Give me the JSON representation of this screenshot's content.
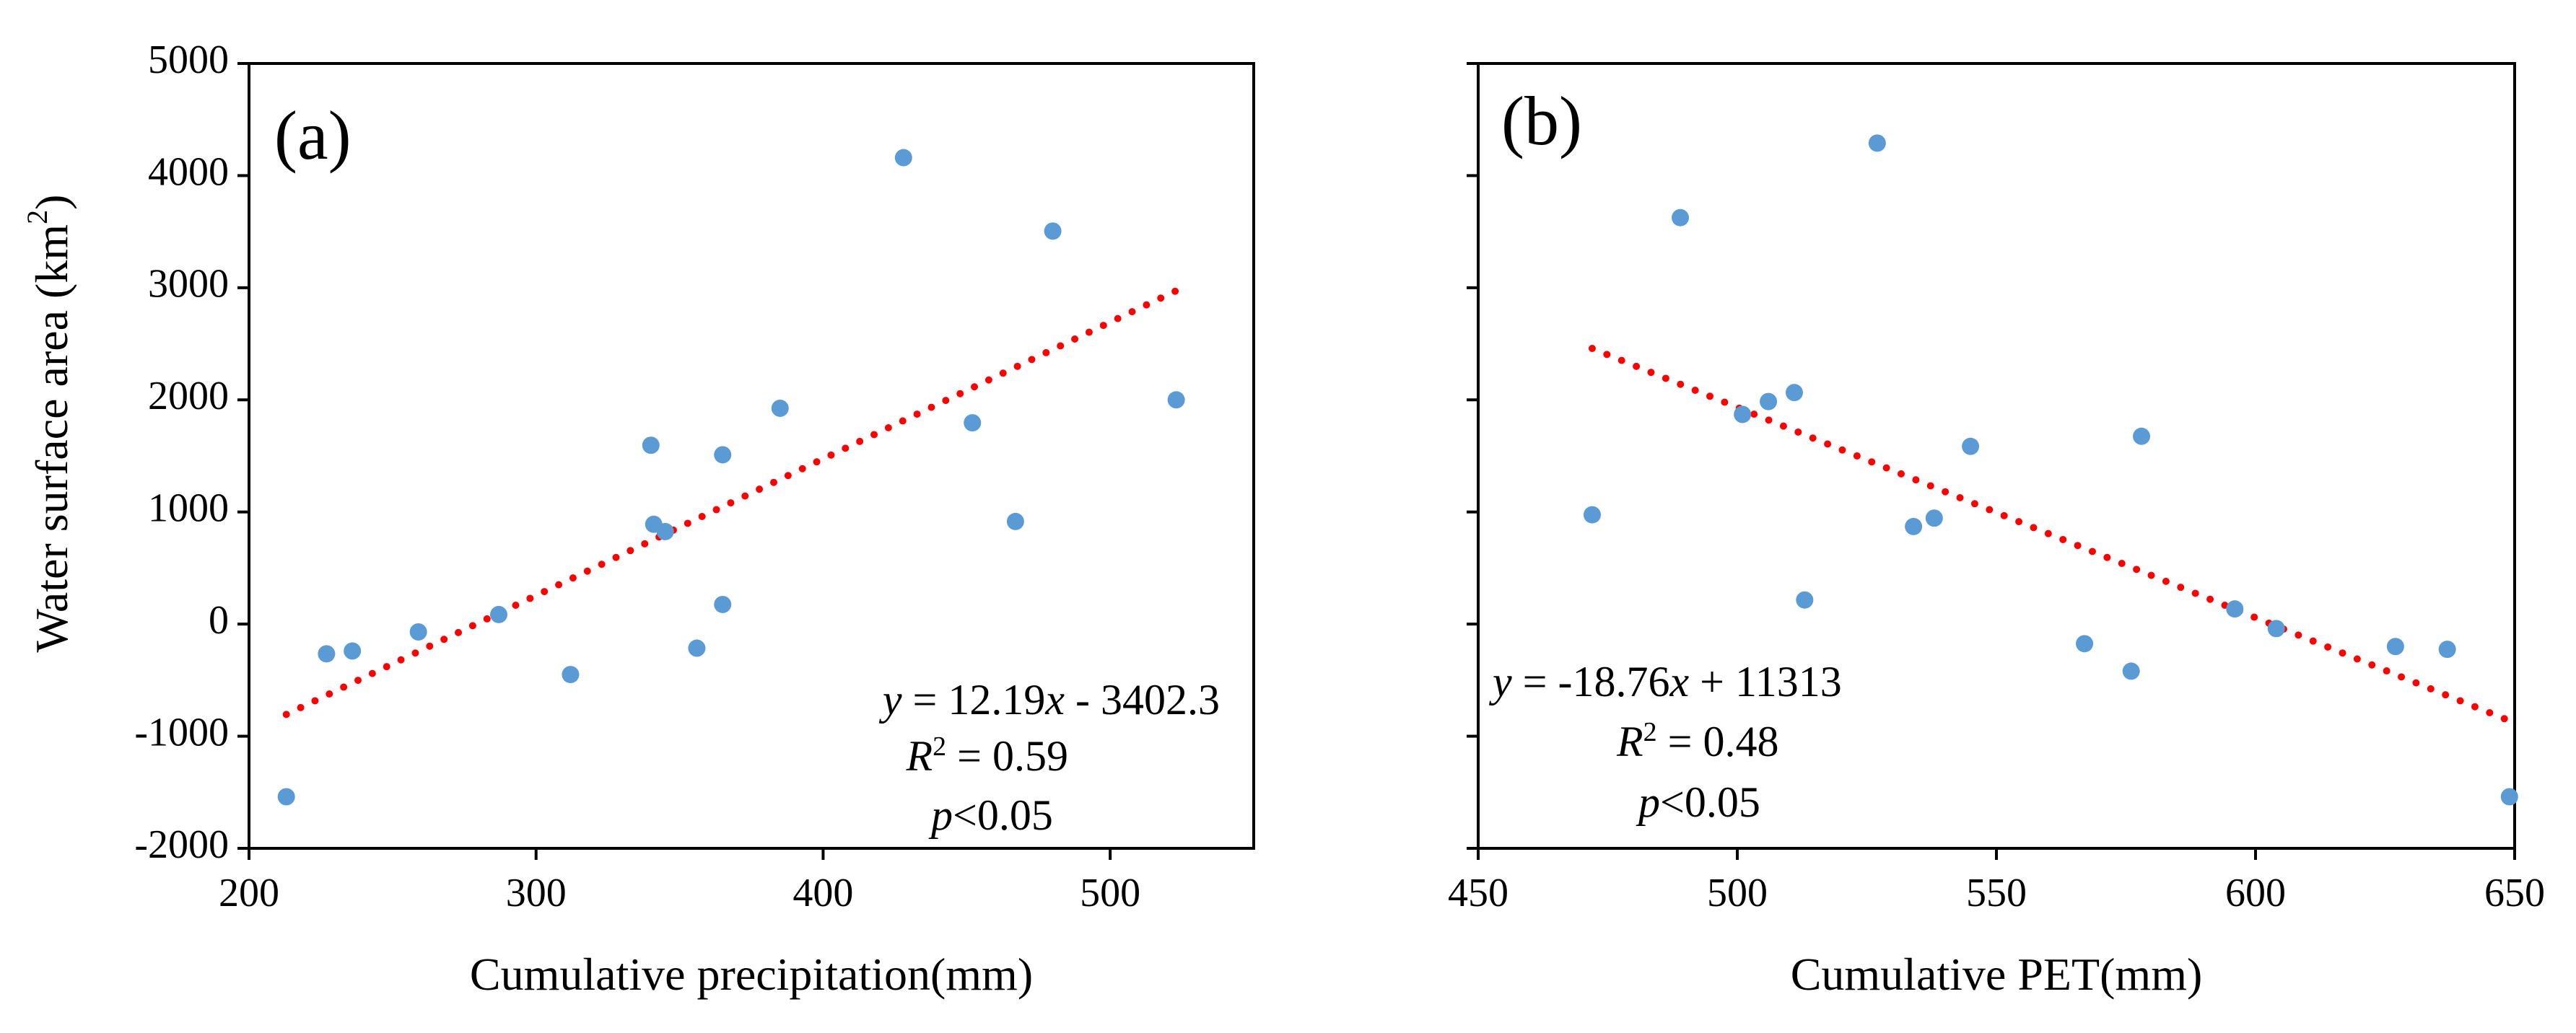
{
  "figure": {
    "marker_color": "#5b9bd5",
    "trend_color": "#ff0000",
    "ylabel_main": "Water surface area (km",
    "ylabel_sup": "2",
    "ylabel_close": ")"
  },
  "chart_data": [
    {
      "type": "scatter",
      "panel_label": "(a)",
      "title": "",
      "xlabel": "Cumulative precipitation(mm)",
      "ylabel": "Water surface area (km²)",
      "xlim": [
        200,
        550
      ],
      "ylim": [
        -2000,
        5000
      ],
      "xticks": [
        200,
        300,
        400,
        500
      ],
      "yticks": [
        -2000,
        -1000,
        0,
        1000,
        2000,
        3000,
        4000,
        5000
      ],
      "grid": false,
      "points": [
        {
          "x": 213,
          "y": -1540
        },
        {
          "x": 227,
          "y": -265
        },
        {
          "x": 236,
          "y": -240
        },
        {
          "x": 259,
          "y": -70
        },
        {
          "x": 287,
          "y": 85
        },
        {
          "x": 312,
          "y": -450
        },
        {
          "x": 340,
          "y": 1595
        },
        {
          "x": 341,
          "y": 890
        },
        {
          "x": 345,
          "y": 825
        },
        {
          "x": 356,
          "y": -215
        },
        {
          "x": 365,
          "y": 1510
        },
        {
          "x": 365,
          "y": 175
        },
        {
          "x": 385,
          "y": 1925
        },
        {
          "x": 428,
          "y": 4160
        },
        {
          "x": 452,
          "y": 1795
        },
        {
          "x": 467,
          "y": 915
        },
        {
          "x": 480,
          "y": 3505
        },
        {
          "x": 523,
          "y": 2000
        }
      ],
      "trendline": {
        "slope": 12.19,
        "intercept": -3402.3,
        "x_range": [
          213,
          523
        ],
        "style": "dotted"
      },
      "equation": {
        "y": "y",
        "eq": " = 12.19",
        "x": "x",
        "rest": " - 3402.3"
      },
      "r2": {
        "r": "R",
        "sup": "2",
        "rest": " = 0.59"
      },
      "p": {
        "p": "p",
        "rest": "<0.05"
      }
    },
    {
      "type": "scatter",
      "panel_label": "(b)",
      "title": "",
      "xlabel": "Cumulative PET(mm)",
      "ylabel": "",
      "xlim": [
        450,
        650
      ],
      "ylim": [
        -2000,
        5000
      ],
      "xticks": [
        450,
        500,
        550,
        600,
        650
      ],
      "yticks": [
        -2000,
        -1000,
        0,
        1000,
        2000,
        3000,
        4000,
        5000
      ],
      "grid": false,
      "points": [
        {
          "x": 472,
          "y": 975
        },
        {
          "x": 489,
          "y": 3625
        },
        {
          "x": 501,
          "y": 1870
        },
        {
          "x": 506,
          "y": 1985
        },
        {
          "x": 511,
          "y": 2065
        },
        {
          "x": 513,
          "y": 215
        },
        {
          "x": 527,
          "y": 4290
        },
        {
          "x": 534,
          "y": 870
        },
        {
          "x": 538,
          "y": 945
        },
        {
          "x": 545,
          "y": 1585
        },
        {
          "x": 567,
          "y": -175
        },
        {
          "x": 576,
          "y": -420
        },
        {
          "x": 578,
          "y": 1675
        },
        {
          "x": 596,
          "y": 135
        },
        {
          "x": 604,
          "y": -40
        },
        {
          "x": 627,
          "y": -200
        },
        {
          "x": 637,
          "y": -225
        },
        {
          "x": 649,
          "y": -1540
        }
      ],
      "trendline": {
        "slope": -18.76,
        "intercept": 11313,
        "x_range": [
          472,
          649
        ],
        "style": "dotted"
      },
      "equation": {
        "y": "y",
        "eq": " = -18.76",
        "x": "x",
        "rest": " + 11313"
      },
      "r2": {
        "r": "R",
        "sup": "2",
        "rest": " = 0.48"
      },
      "p": {
        "p": "p",
        "rest": "<0.05"
      }
    }
  ]
}
